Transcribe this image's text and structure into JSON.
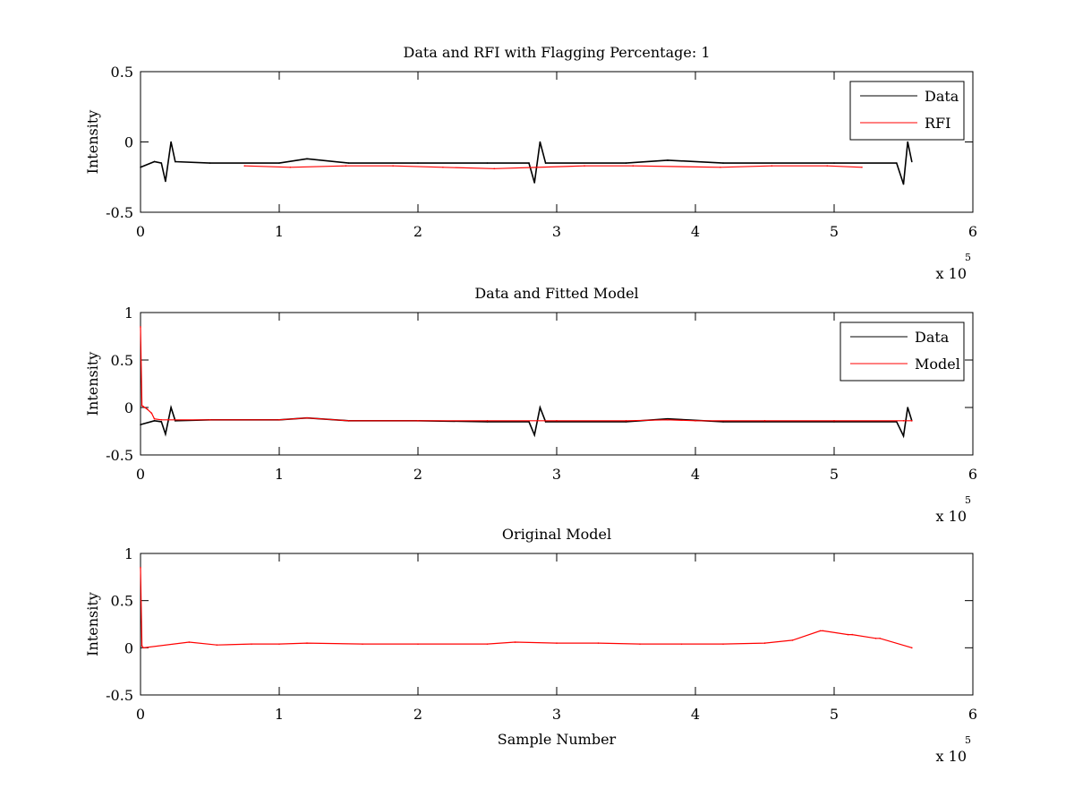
{
  "colors": {
    "data": "#000000",
    "rfi": "#ff0000",
    "model": "#ff0000",
    "background": "#ffffff"
  },
  "chart_data": [
    {
      "type": "line",
      "title": "Data and RFI with Flagging Percentage: 1",
      "xlabel": "",
      "ylabel": "Intensity",
      "xlim": [
        0,
        6
      ],
      "ylim": [
        -0.5,
        0.5
      ],
      "x_ticks": [
        "0",
        "1",
        "2",
        "3",
        "4",
        "5",
        "6"
      ],
      "y_ticks": [
        "-0.5",
        "0",
        "0.5"
      ],
      "x_exponent": "x 10",
      "x_exponent_power": "5",
      "grid": false,
      "legend_position": "top-right",
      "series": [
        {
          "name": "Data",
          "color": "#000000",
          "x": [
            0,
            0.1,
            0.15,
            0.18,
            0.22,
            0.25,
            0.5,
            1.0,
            1.2,
            1.5,
            2.0,
            2.5,
            2.8,
            2.84,
            2.88,
            2.92,
            3.5,
            3.8,
            4.2,
            5.0,
            5.45,
            5.5,
            5.53,
            5.56
          ],
          "y": [
            -0.18,
            -0.14,
            -0.15,
            -0.28,
            0.0,
            -0.14,
            -0.15,
            -0.15,
            -0.12,
            -0.15,
            -0.15,
            -0.15,
            -0.15,
            -0.29,
            0.0,
            -0.15,
            -0.15,
            -0.13,
            -0.15,
            -0.15,
            -0.15,
            -0.3,
            0.0,
            -0.14
          ]
        },
        {
          "name": "RFI",
          "color": "#ff0000",
          "x": [
            0.75,
            1.08,
            1.48,
            1.82,
            2.18,
            2.55,
            3.2,
            3.55,
            4.18,
            4.55,
            4.95,
            5.2
          ],
          "y": [
            -0.17,
            -0.18,
            -0.17,
            -0.17,
            -0.18,
            -0.19,
            -0.17,
            -0.17,
            -0.18,
            -0.17,
            -0.17,
            -0.18
          ]
        }
      ]
    },
    {
      "type": "line",
      "title": "Data and Fitted Model",
      "xlabel": "",
      "ylabel": "Intensity",
      "xlim": [
        0,
        6
      ],
      "ylim": [
        -0.5,
        1
      ],
      "x_ticks": [
        "0",
        "1",
        "2",
        "3",
        "4",
        "5",
        "6"
      ],
      "y_ticks": [
        "-0.5",
        "0",
        "0.5",
        "1"
      ],
      "x_exponent": "x 10",
      "x_exponent_power": "5",
      "grid": false,
      "legend_position": "top-right",
      "series": [
        {
          "name": "Data",
          "color": "#000000",
          "x": [
            0,
            0.1,
            0.15,
            0.18,
            0.22,
            0.25,
            0.5,
            1.0,
            1.2,
            1.5,
            2.0,
            2.5,
            2.8,
            2.84,
            2.88,
            2.92,
            3.5,
            3.8,
            4.2,
            5.0,
            5.45,
            5.5,
            5.53,
            5.56
          ],
          "y": [
            -0.18,
            -0.14,
            -0.15,
            -0.28,
            0.0,
            -0.14,
            -0.13,
            -0.13,
            -0.11,
            -0.14,
            -0.14,
            -0.15,
            -0.15,
            -0.29,
            0.0,
            -0.15,
            -0.15,
            -0.12,
            -0.15,
            -0.15,
            -0.15,
            -0.3,
            0.0,
            -0.14
          ]
        },
        {
          "name": "Model",
          "color": "#ff0000",
          "x": [
            0,
            0.01,
            0.02,
            0.03,
            0.05,
            0.08,
            0.1,
            0.15,
            0.2,
            0.5,
            1.0,
            1.2,
            1.5,
            2.0,
            2.5,
            3.0,
            3.5,
            3.8,
            4.0,
            4.5,
            5.0,
            5.5,
            5.56
          ],
          "y": [
            0.85,
            0.02,
            0.01,
            0.0,
            -0.02,
            -0.06,
            -0.12,
            -0.13,
            -0.13,
            -0.13,
            -0.13,
            -0.11,
            -0.14,
            -0.14,
            -0.14,
            -0.14,
            -0.14,
            -0.13,
            -0.14,
            -0.14,
            -0.14,
            -0.14,
            -0.14
          ]
        }
      ]
    },
    {
      "type": "line",
      "title": "Original Model",
      "xlabel": "Sample Number",
      "ylabel": "Intensity",
      "xlim": [
        0,
        6
      ],
      "ylim": [
        -0.5,
        1
      ],
      "x_ticks": [
        "0",
        "1",
        "2",
        "3",
        "4",
        "5",
        "6"
      ],
      "y_ticks": [
        "-0.5",
        "0",
        "0.5",
        "1"
      ],
      "x_exponent": "x 10",
      "x_exponent_power": "5",
      "grid": false,
      "series": [
        {
          "color": "#ff0000",
          "x": [
            0,
            0.01,
            0.02,
            0.35,
            0.55,
            0.8,
            1.0,
            1.2,
            1.6,
            2.0,
            2.5,
            2.7,
            3.0,
            3.3,
            3.6,
            3.9,
            4.2,
            4.5,
            4.7,
            4.9,
            4.92,
            5.1,
            5.13,
            5.3,
            5.33,
            5.56
          ],
          "y": [
            0.85,
            0.02,
            0.0,
            0.06,
            0.03,
            0.04,
            0.04,
            0.05,
            0.04,
            0.04,
            0.04,
            0.06,
            0.05,
            0.05,
            0.04,
            0.04,
            0.04,
            0.05,
            0.08,
            0.18,
            0.18,
            0.14,
            0.14,
            0.1,
            0.1,
            0.0
          ]
        }
      ]
    }
  ]
}
